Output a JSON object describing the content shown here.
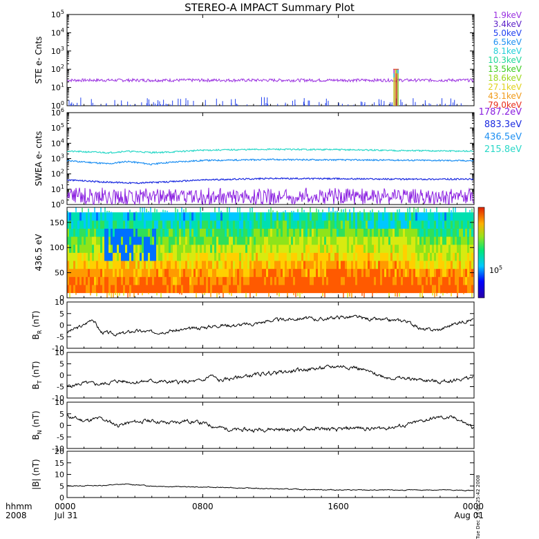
{
  "chart_data": {
    "type": "line",
    "title": "STEREO-A IMPACT Summary Plot",
    "x_axis": {
      "labels_row1": [
        "0000",
        "0800",
        "1600",
        "0000"
      ],
      "labels_row2": [
        "Jul 31",
        "",
        "",
        "Aug 01"
      ],
      "corner_row1": "hhmm",
      "corner_row2": "2008",
      "range_hours": [
        0,
        24
      ],
      "tick_hours": [
        0,
        8,
        16,
        24
      ]
    },
    "timestamp": "Tue Dec 13 05:25:42 2008",
    "panels": [
      {
        "id": "ste",
        "type": "line",
        "ylabel": "STE e- Cnts",
        "yscale": "log",
        "ylim": [
          1,
          100000
        ],
        "ytick_exponents": [
          0,
          1,
          2,
          3,
          4,
          5
        ],
        "legend": [
          {
            "label": "1.9keV",
            "color": "#9a30e0"
          },
          {
            "label": "3.4keV",
            "color": "#5a1ec8"
          },
          {
            "label": "5.0keV",
            "color": "#1f3ff0"
          },
          {
            "label": "6.5keV",
            "color": "#1d8ff2"
          },
          {
            "label": "8.1keV",
            "color": "#22cfd8"
          },
          {
            "label": "10.3keV",
            "color": "#1fd89a"
          },
          {
            "label": "13.5keV",
            "color": "#3ccc1e"
          },
          {
            "label": "18.6keV",
            "color": "#9ad81a"
          },
          {
            "label": "27.1keV",
            "color": "#e0d21a"
          },
          {
            "label": "43.1keV",
            "color": "#f09a18"
          },
          {
            "label": "79.0keV",
            "color": "#e82a18"
          }
        ],
        "series": [
          {
            "name": "1.9keV",
            "baseline": 25,
            "color": "#9a30e0"
          },
          {
            "name": "5.0keV",
            "baseline": 1,
            "color": "#1f3ff0"
          }
        ],
        "spike": {
          "hour": 19.4,
          "peak": 100
        }
      },
      {
        "id": "swea",
        "type": "line",
        "ylabel": "SWEA e- cnts",
        "yscale": "log",
        "ylim": [
          1,
          1000000
        ],
        "ytick_exponents": [
          0,
          1,
          2,
          3,
          4,
          5,
          6
        ],
        "legend": [
          {
            "label": "1787.2eV",
            "color": "#8a1ee0"
          },
          {
            "label": "883.3eV",
            "color": "#1a2ae0"
          },
          {
            "label": "436.5eV",
            "color": "#1d8ff2"
          },
          {
            "label": "215.8eV",
            "color": "#2ad8c8"
          }
        ],
        "series": [
          {
            "name": "215.8eV",
            "color": "#2ad8c8",
            "points": [
              [
                0,
                3000
              ],
              [
                2.5,
                2400
              ],
              [
                3.5,
                3000
              ],
              [
                5,
                2500
              ],
              [
                6,
                2600
              ],
              [
                8,
                3500
              ],
              [
                12,
                4000
              ],
              [
                16,
                3800
              ],
              [
                20,
                3300
              ],
              [
                24,
                3000
              ]
            ]
          },
          {
            "name": "436.5eV",
            "color": "#1d8ff2",
            "points": [
              [
                0,
                700
              ],
              [
                2.5,
                450
              ],
              [
                3.5,
                650
              ],
              [
                5,
                420
              ],
              [
                6,
                560
              ],
              [
                8,
                750
              ],
              [
                12,
                850
              ],
              [
                16,
                820
              ],
              [
                20,
                780
              ],
              [
                24,
                720
              ]
            ]
          },
          {
            "name": "883.3eV",
            "color": "#1a2ae0",
            "points": [
              [
                0,
                40
              ],
              [
                2,
                30
              ],
              [
                4,
                25
              ],
              [
                6,
                30
              ],
              [
                8,
                40
              ],
              [
                12,
                50
              ],
              [
                16,
                48
              ],
              [
                20,
                45
              ],
              [
                24,
                45
              ]
            ]
          },
          {
            "name": "1787.2eV",
            "color": "#8a1ee0",
            "points": [
              [
                0,
                3
              ],
              [
                6,
                3
              ],
              [
                12,
                3
              ],
              [
                18,
                3
              ],
              [
                24,
                3
              ]
            ]
          }
        ]
      },
      {
        "id": "pad",
        "type": "heatmap",
        "ylabel": "436.5 eV",
        "ylim": [
          0,
          180
        ],
        "yticks": [
          0,
          50,
          100,
          150
        ],
        "colorbar_label": "10",
        "colorbar_label_exp": "5"
      },
      {
        "id": "br",
        "type": "line",
        "ylabel_main": "B",
        "ylabel_sub": "R",
        "ylabel_unit": "(nT)",
        "ylim": [
          -10,
          10
        ],
        "yticks": [
          10,
          5,
          0,
          -5,
          -10
        ],
        "points": [
          [
            0,
            -3
          ],
          [
            1,
            0
          ],
          [
            1.5,
            3
          ],
          [
            2,
            -3
          ],
          [
            3,
            -4
          ],
          [
            4,
            -2.5
          ],
          [
            5,
            -3
          ],
          [
            6,
            -2.5
          ],
          [
            7,
            -2
          ],
          [
            8,
            -1
          ],
          [
            9,
            0
          ],
          [
            10,
            0
          ],
          [
            11,
            0.5
          ],
          [
            12,
            2
          ],
          [
            13,
            2.5
          ],
          [
            14,
            3
          ],
          [
            15,
            2.5
          ],
          [
            16,
            3.5
          ],
          [
            17,
            3.5
          ],
          [
            18,
            2.5
          ],
          [
            19,
            2
          ],
          [
            20,
            2
          ],
          [
            21,
            -2
          ],
          [
            22,
            -2
          ],
          [
            23,
            1
          ],
          [
            24,
            2.5
          ]
        ]
      },
      {
        "id": "bt",
        "type": "line",
        "ylabel_main": "B",
        "ylabel_sub": "T",
        "ylabel_unit": "(nT)",
        "ylim": [
          -10,
          10
        ],
        "yticks": [
          10,
          5,
          0,
          -5,
          -10
        ],
        "points": [
          [
            0,
            -5
          ],
          [
            1,
            -3.5
          ],
          [
            2,
            -4
          ],
          [
            3,
            -2.5
          ],
          [
            4,
            -3
          ],
          [
            5,
            -2.5
          ],
          [
            6,
            -3
          ],
          [
            7,
            -3
          ],
          [
            8,
            -2.5
          ],
          [
            8.5,
            0
          ],
          [
            9,
            -2.5
          ],
          [
            10,
            -1
          ],
          [
            11,
            0
          ],
          [
            12,
            1
          ],
          [
            13,
            1.5
          ],
          [
            14,
            2.5
          ],
          [
            15,
            3
          ],
          [
            16,
            4
          ],
          [
            17,
            3.5
          ],
          [
            18,
            1
          ],
          [
            19,
            -1
          ],
          [
            20,
            -1.5
          ],
          [
            21,
            -2
          ],
          [
            22,
            -3
          ],
          [
            23,
            -2
          ],
          [
            24,
            -1
          ]
        ]
      },
      {
        "id": "bn",
        "type": "line",
        "ylabel_main": "B",
        "ylabel_sub": "N",
        "ylabel_unit": "(nT)",
        "ylim": [
          -10,
          10
        ],
        "yticks": [
          10,
          5,
          0,
          -5,
          -10
        ],
        "points": [
          [
            0,
            4
          ],
          [
            1,
            2
          ],
          [
            2,
            3
          ],
          [
            3,
            0
          ],
          [
            4,
            1.5
          ],
          [
            5,
            2
          ],
          [
            6,
            1
          ],
          [
            7,
            2
          ],
          [
            8,
            1
          ],
          [
            9,
            -1
          ],
          [
            10,
            -2
          ],
          [
            11,
            -2
          ],
          [
            12,
            -1.5
          ],
          [
            13,
            -2
          ],
          [
            14,
            -1.5
          ],
          [
            15,
            -1.5
          ],
          [
            16,
            -2
          ],
          [
            17,
            -1
          ],
          [
            18,
            -1.5
          ],
          [
            19,
            -1
          ],
          [
            20,
            0
          ],
          [
            21,
            2
          ],
          [
            22,
            3.5
          ],
          [
            23,
            3
          ],
          [
            24,
            -1
          ]
        ]
      },
      {
        "id": "bmag",
        "type": "line",
        "ylabel_main": "|B|",
        "ylabel_sub": "",
        "ylabel_unit": "(nT)",
        "ylim": [
          0,
          20
        ],
        "yticks": [
          20,
          15,
          10,
          5,
          0
        ],
        "points": [
          [
            0,
            5
          ],
          [
            2,
            5.2
          ],
          [
            3.5,
            5.8
          ],
          [
            5,
            5
          ],
          [
            6,
            4.8
          ],
          [
            8,
            4.5
          ],
          [
            10,
            4.2
          ],
          [
            12,
            3.8
          ],
          [
            14,
            3.5
          ],
          [
            16,
            3.3
          ],
          [
            18,
            3.2
          ],
          [
            20,
            3.2
          ],
          [
            22,
            3.3
          ],
          [
            24,
            3
          ]
        ]
      }
    ]
  }
}
